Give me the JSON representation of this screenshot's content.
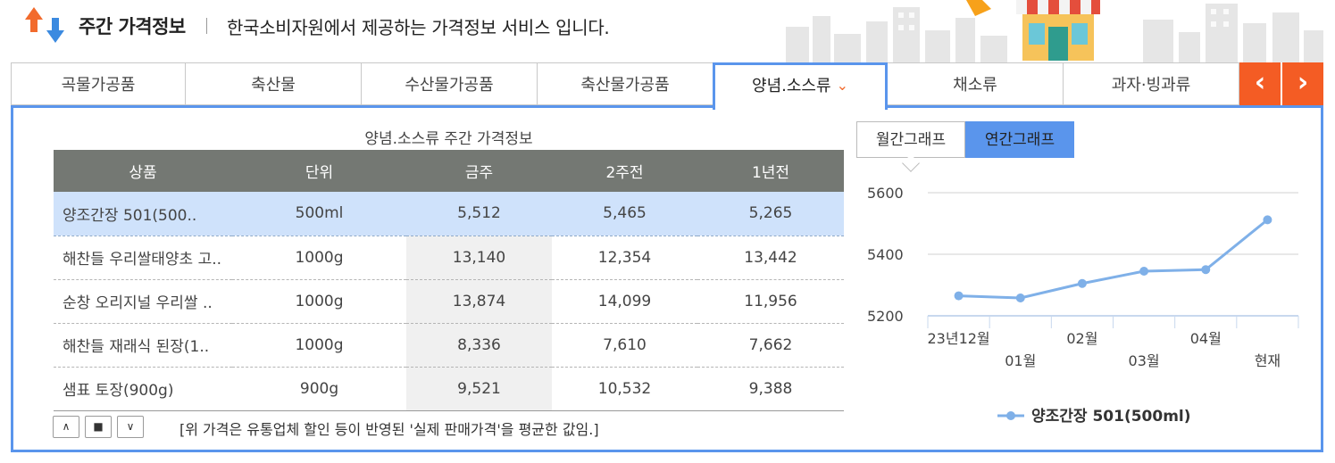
{
  "header": {
    "title": "주간 가격정보",
    "description": "한국소비자원에서 제공하는 가격정보 서비스 입니다."
  },
  "tabs": [
    {
      "label": "곡물가공품"
    },
    {
      "label": "축산물"
    },
    {
      "label": "수산물가공품"
    },
    {
      "label": "축산물가공품"
    },
    {
      "label": "양념.소스류",
      "active": true
    },
    {
      "label": "채소류"
    },
    {
      "label": "과자·빙과류"
    }
  ],
  "nav": {
    "prev": "‹",
    "next": "›"
  },
  "table": {
    "caption": "양념.소스류 주간 가격정보",
    "headers": [
      "상품",
      "단위",
      "금주",
      "2주전",
      "1년전"
    ],
    "rows": [
      {
        "name": "양조간장 501(500..",
        "unit": "500ml",
        "this_week": "5,512",
        "two_weeks": "5,465",
        "one_year": "5,265",
        "selected": true
      },
      {
        "name": "해찬들 우리쌀태양초 고..",
        "unit": "1000g",
        "this_week": "13,140",
        "two_weeks": "12,354",
        "one_year": "13,442"
      },
      {
        "name": "순창 오리지널 우리쌀 ..",
        "unit": "1000g",
        "this_week": "13,874",
        "two_weeks": "14,099",
        "one_year": "11,956"
      },
      {
        "name": "해찬들 재래식 된장(1..",
        "unit": "1000g",
        "this_week": "8,336",
        "two_weeks": "7,610",
        "one_year": "7,662"
      },
      {
        "name": "샘표 토장(900g)",
        "unit": "900g",
        "this_week": "9,521",
        "two_weeks": "10,532",
        "one_year": "9,388"
      }
    ]
  },
  "controls": {
    "up": "∧",
    "stop": "■",
    "down": "∨"
  },
  "note": "[위 가격은 유통업체 할인 등이 반영된 '실제 판매가격'을 평균한 값임.]",
  "graph_tabs": {
    "monthly": "월간그래프",
    "yearly": "연간그래프",
    "active": "yearly"
  },
  "colors": {
    "accent": "#5a95ec",
    "nav": "#f45c24",
    "header_row": "#747873",
    "line": "#7fb0e8"
  },
  "chart_data": {
    "type": "line",
    "categories": [
      "23년12월",
      "01월",
      "02월",
      "03월",
      "04월",
      "현재"
    ],
    "series": [
      {
        "name": "양조간장 501(500ml)",
        "values": [
          5265,
          5258,
          5305,
          5345,
          5350,
          5512
        ]
      }
    ],
    "yticks": [
      "5600",
      "5400",
      "5200"
    ],
    "ylim": [
      5200,
      5600
    ],
    "grid": true,
    "legend": "bottom"
  }
}
